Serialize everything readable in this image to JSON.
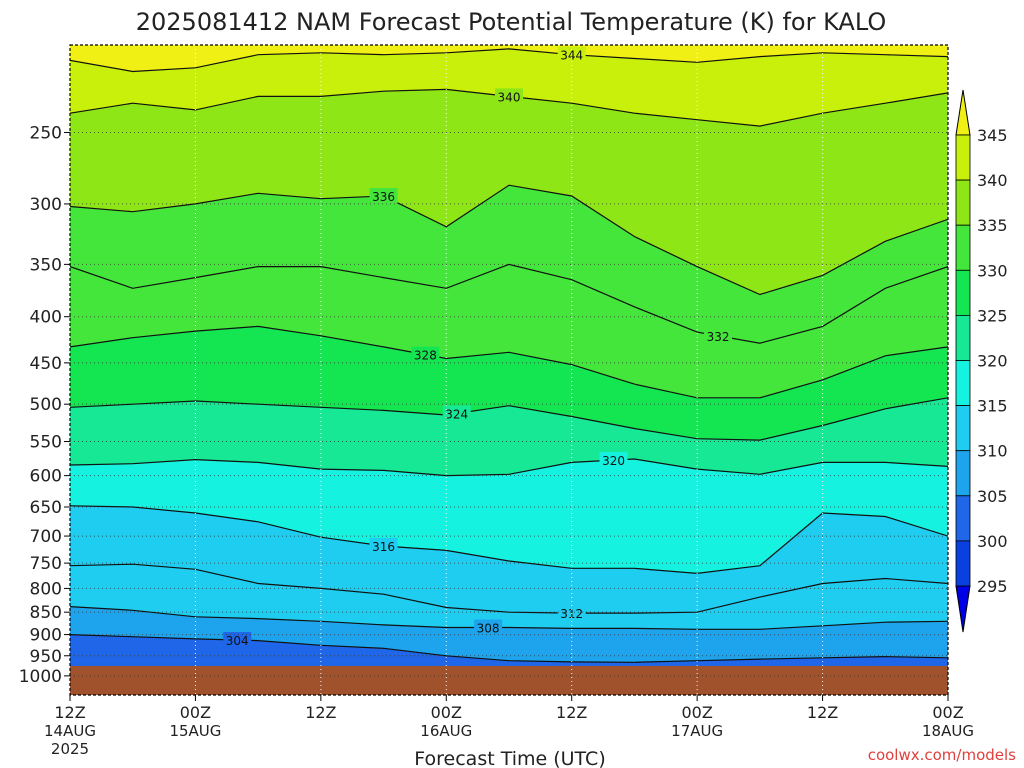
{
  "chart_data": {
    "type": "heatmap",
    "title": "2025081412 NAM Forecast Potential Temperature (K) for KALO",
    "xlabel": "Forecast Time (UTC)",
    "credit": "coolwx.com/models",
    "xlim_hours": [
      0,
      84
    ],
    "ylim_hpa": [
      200,
      1050
    ],
    "y_scale": "log-pressure",
    "x_ticks": [
      {
        "hour": 0,
        "label": "12Z",
        "sub": "14AUG",
        "year": "2025"
      },
      {
        "hour": 12,
        "label": "00Z",
        "sub": "15AUG"
      },
      {
        "hour": 24,
        "label": "12Z"
      },
      {
        "hour": 36,
        "label": "00Z",
        "sub": "16AUG"
      },
      {
        "hour": 48,
        "label": "12Z"
      },
      {
        "hour": 60,
        "label": "00Z",
        "sub": "17AUG"
      },
      {
        "hour": 72,
        "label": "12Z"
      },
      {
        "hour": 84,
        "label": "00Z",
        "sub": "18AUG"
      }
    ],
    "y_ticks": [
      250,
      300,
      350,
      400,
      450,
      500,
      550,
      600,
      650,
      700,
      750,
      800,
      850,
      900,
      950,
      1000
    ],
    "colorbar": {
      "levels": [
        295,
        300,
        305,
        310,
        315,
        320,
        325,
        330,
        335,
        340,
        345
      ],
      "labels": [
        "295",
        "300",
        "305",
        "310",
        "315",
        "320",
        "325",
        "330",
        "335",
        "340",
        "345"
      ],
      "colors": [
        "#0000e6",
        "#0a3fe0",
        "#1f66e8",
        "#1ea4ec",
        "#1ecdf0",
        "#16f2e0",
        "#16e896",
        "#14e652",
        "#44e63c",
        "#8ee616",
        "#c8f00a",
        "#f0f014"
      ]
    },
    "ground_color": "#a0522d",
    "ground_top_hpa": 975,
    "hours": [
      0,
      6,
      12,
      18,
      24,
      30,
      36,
      42,
      48,
      54,
      60,
      66,
      72,
      78,
      84
    ],
    "contours": [
      {
        "value": 344,
        "label": "344",
        "pressure": [
          208,
          214,
          212,
          205,
          204,
          205,
          204,
          202,
          205,
          207,
          209,
          206,
          204,
          205,
          206
        ]
      },
      {
        "value": 340,
        "label": "340",
        "pressure": [
          238,
          232,
          236,
          228,
          228,
          225,
          224,
          228,
          232,
          238,
          242,
          246,
          238,
          232,
          226
        ]
      },
      {
        "value": 336,
        "label": "336",
        "pressure": [
          302,
          306,
          300,
          292,
          296,
          294,
          318,
          286,
          294,
          326,
          352,
          378,
          360,
          330,
          312
        ]
      },
      {
        "value": 332,
        "label": "332",
        "pressure": [
          352,
          372,
          362,
          352,
          352,
          362,
          372,
          350,
          364,
          390,
          416,
          428,
          410,
          372,
          352
        ]
      },
      {
        "value": 328,
        "label": "328",
        "pressure": [
          432,
          422,
          415,
          410,
          420,
          432,
          445,
          438,
          452,
          475,
          492,
          492,
          470,
          442,
          432
        ]
      },
      {
        "value": 324,
        "label": "324",
        "pressure": [
          504,
          500,
          496,
          500,
          504,
          508,
          514,
          502,
          516,
          532,
          546,
          548,
          528,
          506,
          492
        ]
      },
      {
        "value": 320,
        "label": "320",
        "pressure": [
          584,
          582,
          576,
          580,
          590,
          592,
          600,
          598,
          580,
          575,
          590,
          598,
          580,
          580,
          586
        ]
      },
      {
        "value": 316,
        "label": "316",
        "pressure": [
          648,
          650,
          660,
          675,
          702,
          718,
          726,
          746,
          760,
          760,
          770,
          755,
          660,
          666,
          700
        ]
      },
      {
        "value": 312,
        "label": "312",
        "pressure": [
          755,
          752,
          762,
          790,
          800,
          812,
          840,
          850,
          852,
          852,
          850,
          818,
          790,
          780,
          790
        ]
      },
      {
        "value": 308,
        "label": "308",
        "pressure": [
          838,
          846,
          860,
          864,
          870,
          878,
          884,
          884,
          886,
          886,
          888,
          888,
          880,
          872,
          870
        ]
      },
      {
        "value": 304,
        "label": "304",
        "pressure": [
          900,
          905,
          910,
          914,
          925,
          932,
          950,
          962,
          965,
          966,
          962,
          958,
          955,
          952,
          955
        ]
      }
    ]
  }
}
